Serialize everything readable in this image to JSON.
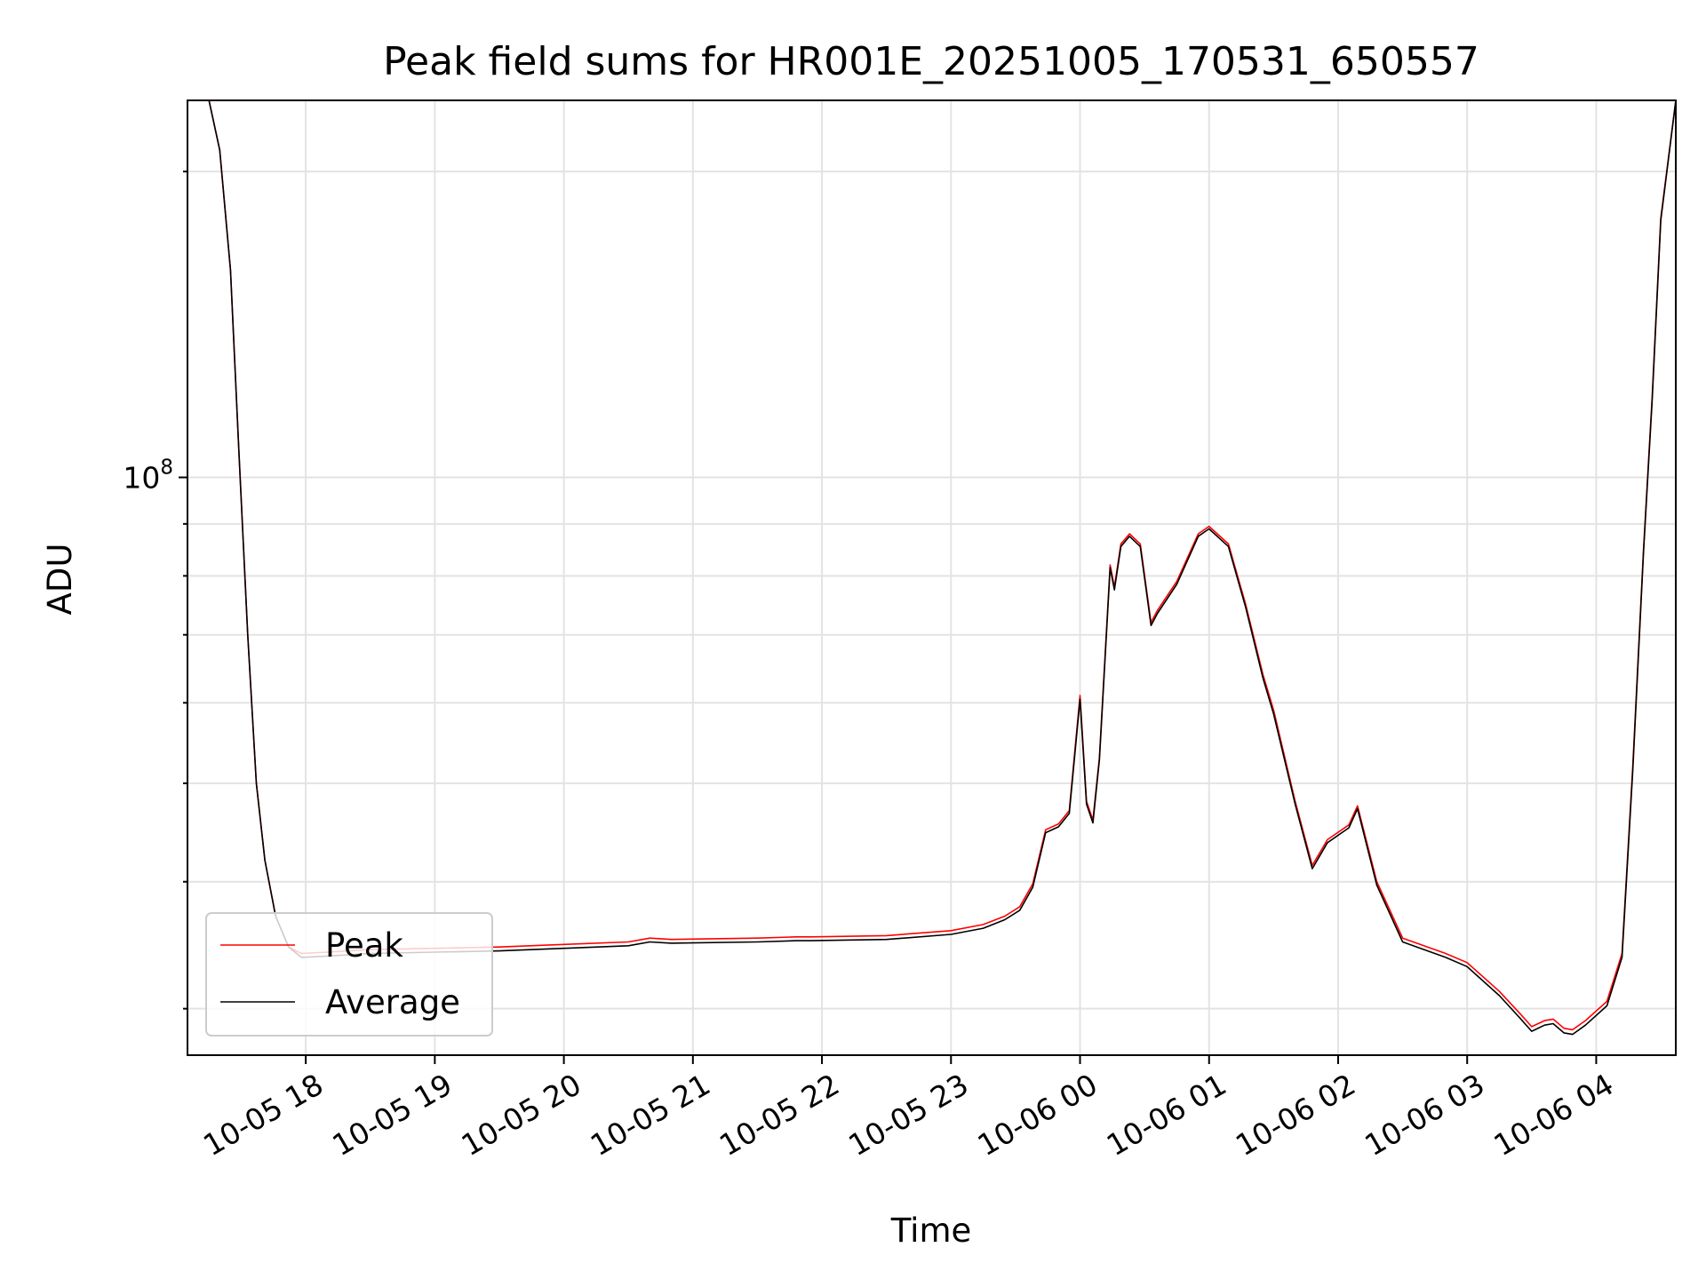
{
  "chart_data": {
    "type": "line",
    "title": "Peak field sums for HR001E_20251005_170531_650557",
    "xlabel": "Time",
    "ylabel": "ADU",
    "yscale": "log",
    "grid": true,
    "legend_position": "lower-left",
    "xlim": [
      "2025-10-05 17:05",
      "2025-10-06 04:37"
    ],
    "ylim": [
      27000000,
      235000000
    ],
    "x_tick_labels": [
      "10-05 18",
      "10-05 19",
      "10-05 20",
      "10-05 21",
      "10-05 22",
      "10-05 23",
      "10-06 00",
      "10-06 01",
      "10-06 02",
      "10-06 03",
      "10-06 04"
    ],
    "x_ticks": [
      "2025-10-05 18:00",
      "2025-10-05 19:00",
      "2025-10-05 20:00",
      "2025-10-05 21:00",
      "2025-10-05 22:00",
      "2025-10-05 23:00",
      "2025-10-06 00:00",
      "2025-10-06 01:00",
      "2025-10-06 02:00",
      "2025-10-06 03:00",
      "2025-10-06 04:00"
    ],
    "y_tick_labels": [
      {
        "base": "10",
        "exp": "8",
        "value": 100000000
      }
    ],
    "x": [
      "2025-10-05 17:05",
      "2025-10-05 17:15",
      "2025-10-05 17:20",
      "2025-10-05 17:25",
      "2025-10-05 17:29",
      "2025-10-05 17:33",
      "2025-10-05 17:37",
      "2025-10-05 17:41",
      "2025-10-05 17:46",
      "2025-10-05 17:52",
      "2025-10-05 17:58",
      "2025-10-05 18:10",
      "2025-10-05 18:30",
      "2025-10-05 19:00",
      "2025-10-05 19:30",
      "2025-10-05 20:00",
      "2025-10-05 20:30",
      "2025-10-05 20:40",
      "2025-10-05 20:50",
      "2025-10-05 21:30",
      "2025-10-05 21:48",
      "2025-10-05 21:55",
      "2025-10-05 22:30",
      "2025-10-05 23:00",
      "2025-10-05 23:15",
      "2025-10-05 23:25",
      "2025-10-05 23:32",
      "2025-10-05 23:38",
      "2025-10-05 23:44",
      "2025-10-05 23:50",
      "2025-10-05 23:55",
      "2025-10-06 00:00",
      "2025-10-06 00:03",
      "2025-10-06 00:06",
      "2025-10-06 00:09",
      "2025-10-06 00:14",
      "2025-10-06 00:16",
      "2025-10-06 00:19",
      "2025-10-06 00:23",
      "2025-10-06 00:28",
      "2025-10-06 00:33",
      "2025-10-06 00:36",
      "2025-10-06 00:45",
      "2025-10-06 00:55",
      "2025-10-06 01:00",
      "2025-10-06 01:09",
      "2025-10-06 01:17",
      "2025-10-06 01:25",
      "2025-10-06 01:30",
      "2025-10-06 01:40",
      "2025-10-06 01:48",
      "2025-10-06 01:55",
      "2025-10-06 02:05",
      "2025-10-06 02:09",
      "2025-10-06 02:18",
      "2025-10-06 02:30",
      "2025-10-06 02:50",
      "2025-10-06 03:00",
      "2025-10-06 03:15",
      "2025-10-06 03:25",
      "2025-10-06 03:30",
      "2025-10-06 03:36",
      "2025-10-06 03:40",
      "2025-10-06 03:45",
      "2025-10-06 03:49",
      "2025-10-06 03:55",
      "2025-10-06 04:05",
      "2025-10-06 04:12",
      "2025-10-06 04:17",
      "2025-10-06 04:22",
      "2025-10-06 04:26",
      "2025-10-06 04:30",
      "2025-10-06 04:37"
    ],
    "series": [
      {
        "name": "Peak",
        "color": "#ff0000",
        "values": [
          235000000,
          235000000,
          210000000,
          160000000,
          105000000,
          70000000,
          50000000,
          42000000,
          37000000,
          34500000,
          34000000,
          34100000,
          34300000,
          34400000,
          34500000,
          34700000,
          34900000,
          35200000,
          35100000,
          35200000,
          35300000,
          35300000,
          35400000,
          35800000,
          36300000,
          37000000,
          37800000,
          39800000,
          45000000,
          45600000,
          47000000,
          61000000,
          48000000,
          46000000,
          53000000,
          82000000,
          78000000,
          86000000,
          88000000,
          86000000,
          72000000,
          74000000,
          79000000,
          88000000,
          89500000,
          86000000,
          75000000,
          64000000,
          59000000,
          48000000,
          41500000,
          44000000,
          45500000,
          47500000,
          40000000,
          35200000,
          34000000,
          33300000,
          31200000,
          29600000,
          28800000,
          29200000,
          29300000,
          28700000,
          28600000,
          29200000,
          30500000,
          34000000,
          52000000,
          85000000,
          120000000,
          180000000,
          235000000
        ]
      },
      {
        "name": "Average",
        "color": "#000000",
        "values": [
          235000000,
          235000000,
          210000000,
          160000000,
          105000000,
          70000000,
          50000000,
          42000000,
          37000000,
          34500000,
          33700000,
          33800000,
          34000000,
          34100000,
          34200000,
          34400000,
          34600000,
          34900000,
          34800000,
          34900000,
          35000000,
          35000000,
          35100000,
          35500000,
          36000000,
          36700000,
          37500000,
          39500000,
          44700000,
          45300000,
          46700000,
          60500000,
          47700000,
          45700000,
          52700000,
          81500000,
          77500000,
          85500000,
          87500000,
          85500000,
          71500000,
          73500000,
          78500000,
          87500000,
          89000000,
          85500000,
          74500000,
          63500000,
          58500000,
          47700000,
          41200000,
          43700000,
          45200000,
          47200000,
          39700000,
          34900000,
          33700000,
          33000000,
          30900000,
          29300000,
          28500000,
          28900000,
          29000000,
          28400000,
          28300000,
          28900000,
          30200000,
          33700000,
          51500000,
          84500000,
          119000000,
          179000000,
          235000000
        ]
      }
    ]
  }
}
